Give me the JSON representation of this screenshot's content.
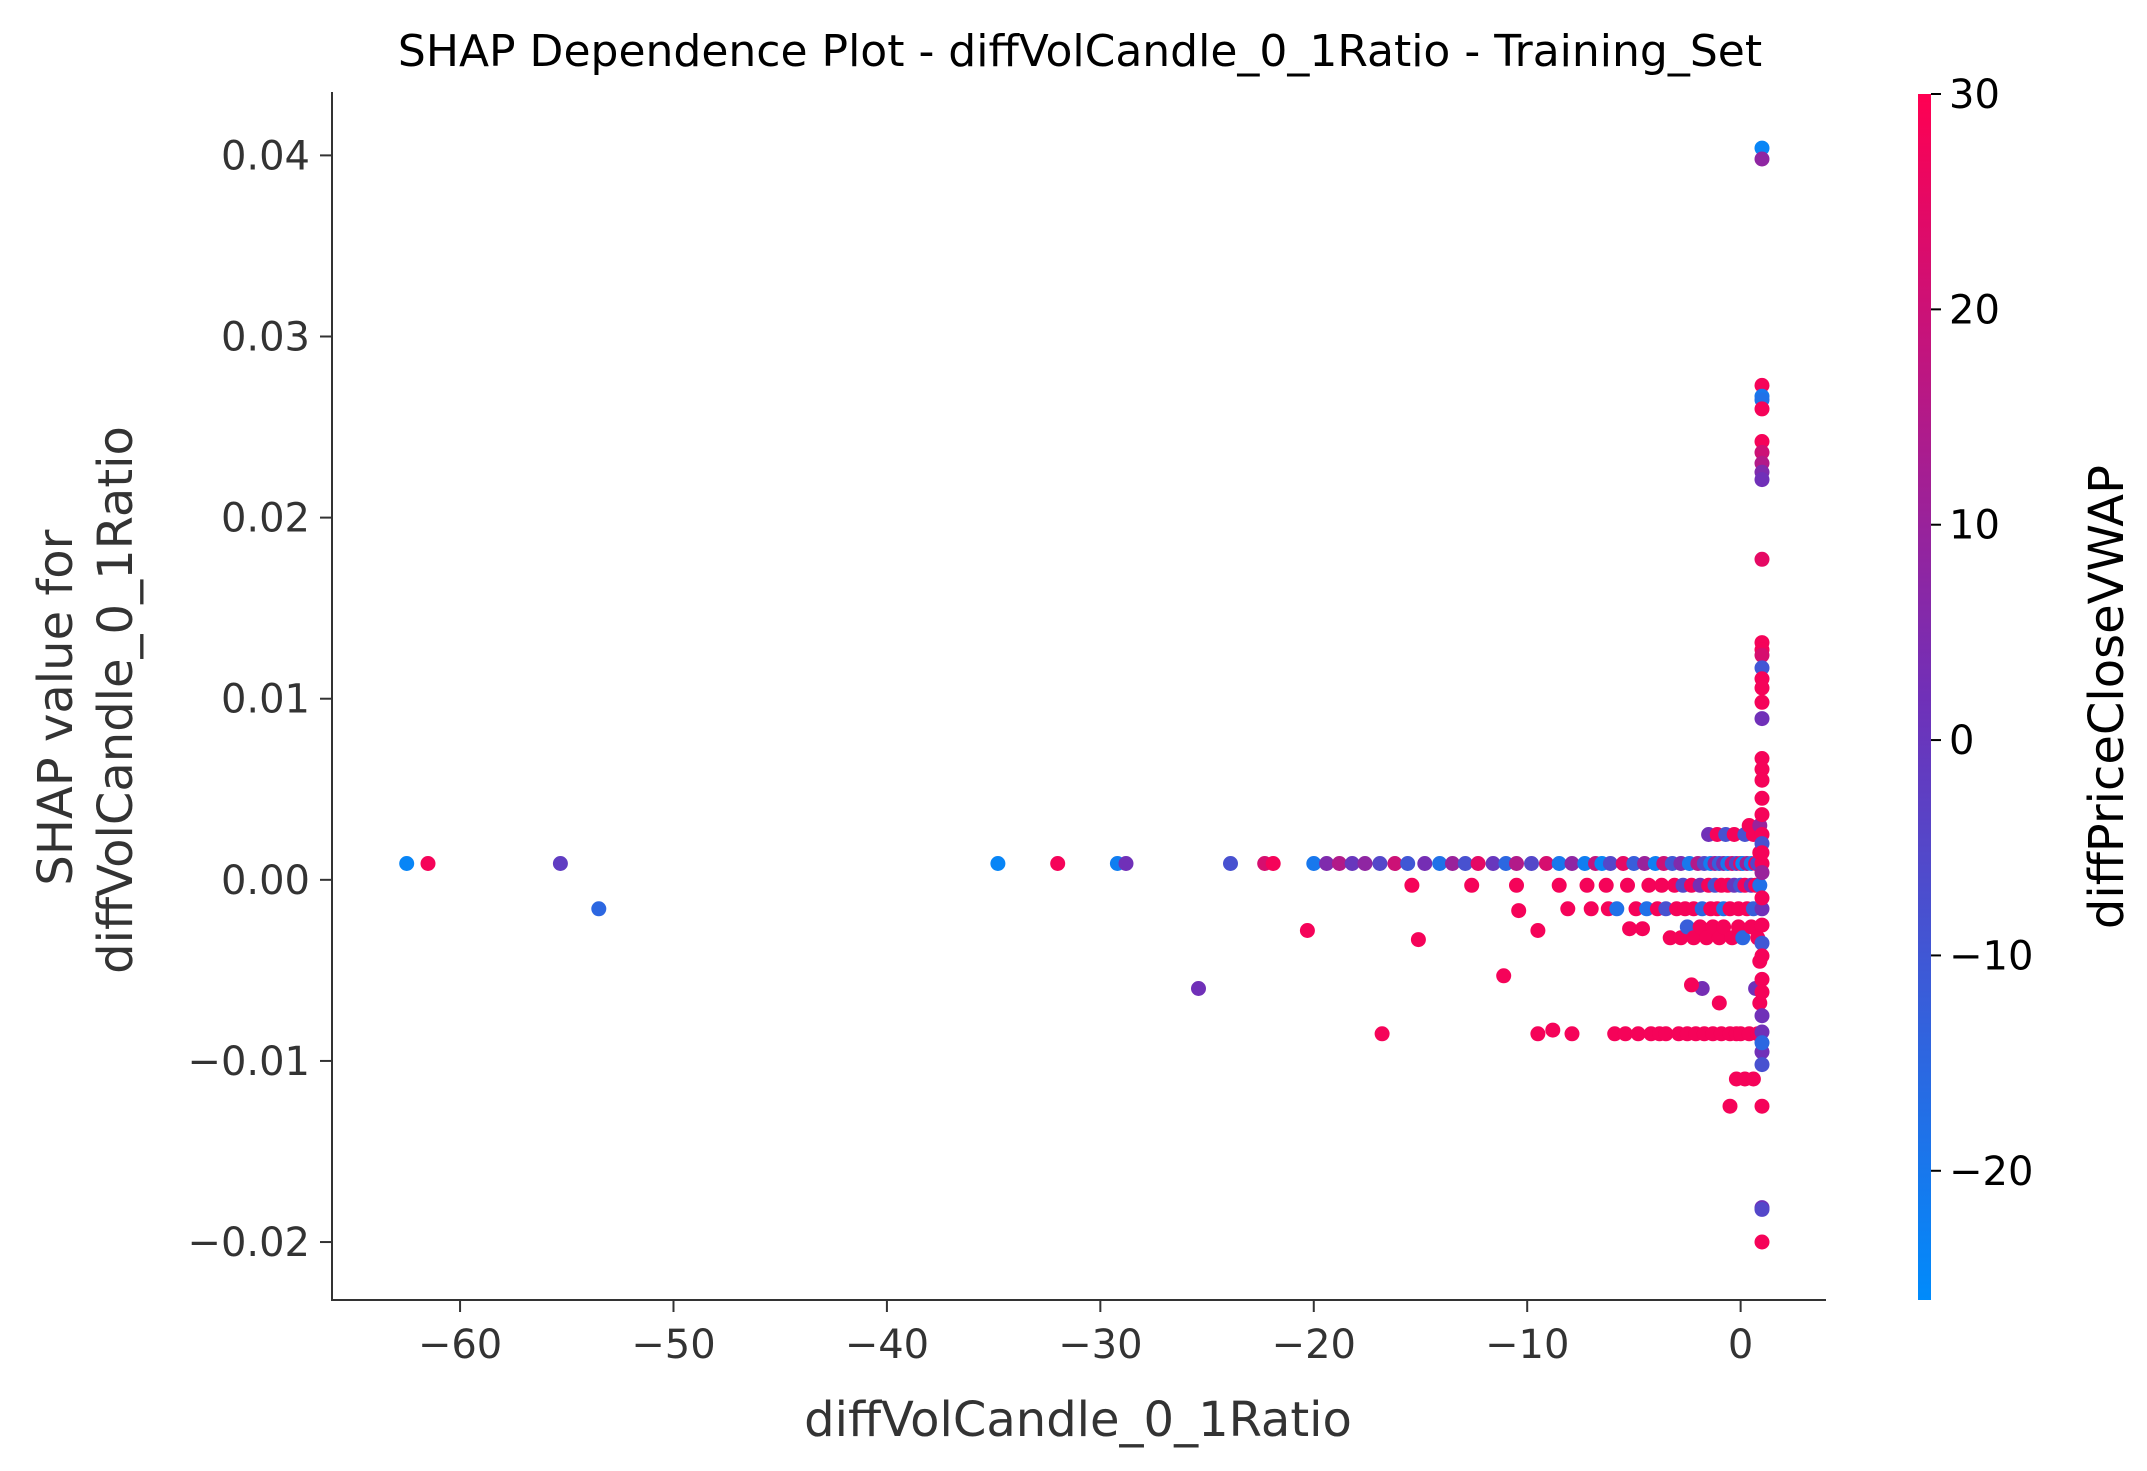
{
  "chart_data": {
    "type": "scatter",
    "title": "SHAP Dependence Plot - diffVolCandle_0_1Ratio - Training_Set",
    "xlabel": "diffVolCandle_0_1Ratio",
    "ylabel": "SHAP value for\ndiffVolCandle_0_1Ratio",
    "xlim": [
      -66,
      4
    ],
    "ylim": [
      -0.0232,
      0.0435
    ],
    "x_ticks": [
      -60,
      -50,
      -40,
      -30,
      -20,
      -10,
      0
    ],
    "x_tick_labels": [
      "−60",
      "−50",
      "−40",
      "−30",
      "−20",
      "−10",
      "0"
    ],
    "y_ticks": [
      -0.02,
      -0.01,
      0.0,
      0.01,
      0.02,
      0.03,
      0.04
    ],
    "y_tick_labels": [
      "−0.02",
      "−0.01",
      "0.00",
      "0.01",
      "0.02",
      "0.03",
      "0.04"
    ],
    "grid": false,
    "colorbar": {
      "label": "diffPriceCloseVWAP",
      "range": [
        -26,
        30
      ],
      "ticks": [
        -20,
        -10,
        0,
        10,
        20,
        30
      ],
      "tick_labels": [
        "−20",
        "−10",
        "0",
        "10",
        "20",
        "30"
      ],
      "color_low": "#008bfb",
      "color_mid": "#7030b8",
      "color_high": "#ff0052"
    },
    "points": [
      {
        "x": -62.5,
        "y": 0.0009,
        "c": -24
      },
      {
        "x": -61.5,
        "y": 0.0009,
        "c": 28
      },
      {
        "x": -55.3,
        "y": 0.0009,
        "c": -2
      },
      {
        "x": -53.5,
        "y": -0.0016,
        "c": -15
      },
      {
        "x": -34.8,
        "y": 0.0009,
        "c": -24
      },
      {
        "x": -32.0,
        "y": 0.0009,
        "c": 28
      },
      {
        "x": -29.2,
        "y": 0.0009,
        "c": -22
      },
      {
        "x": -28.8,
        "y": 0.0009,
        "c": 2
      },
      {
        "x": -25.4,
        "y": -0.006,
        "c": 2
      },
      {
        "x": -23.9,
        "y": 0.0009,
        "c": -8
      },
      {
        "x": -22.3,
        "y": 0.0009,
        "c": 22
      },
      {
        "x": -21.9,
        "y": 0.0009,
        "c": 28
      },
      {
        "x": -20.3,
        "y": -0.0028,
        "c": 28
      },
      {
        "x": -20.0,
        "y": 0.0009,
        "c": -20
      },
      {
        "x": -19.4,
        "y": 0.0009,
        "c": 5
      },
      {
        "x": -18.8,
        "y": 0.0009,
        "c": 15
      },
      {
        "x": -18.2,
        "y": 0.0009,
        "c": 0
      },
      {
        "x": -17.6,
        "y": 0.0009,
        "c": 8
      },
      {
        "x": -16.9,
        "y": 0.0009,
        "c": -5
      },
      {
        "x": -16.8,
        "y": -0.0085,
        "c": 28
      },
      {
        "x": -16.2,
        "y": 0.0009,
        "c": 20
      },
      {
        "x": -15.6,
        "y": 0.0009,
        "c": -10
      },
      {
        "x": -15.4,
        "y": -0.0003,
        "c": 28
      },
      {
        "x": -15.1,
        "y": -0.0033,
        "c": 28
      },
      {
        "x": -14.8,
        "y": 0.0009,
        "c": 3
      },
      {
        "x": -14.1,
        "y": 0.0009,
        "c": -18
      },
      {
        "x": -13.5,
        "y": 0.0009,
        "c": 10
      },
      {
        "x": -12.9,
        "y": 0.0009,
        "c": -8
      },
      {
        "x": -12.6,
        "y": -0.0003,
        "c": 28
      },
      {
        "x": -12.3,
        "y": 0.0009,
        "c": 25
      },
      {
        "x": -11.6,
        "y": 0.0009,
        "c": 0
      },
      {
        "x": -11.1,
        "y": -0.0053,
        "c": 28
      },
      {
        "x": -11.0,
        "y": 0.0009,
        "c": -15
      },
      {
        "x": -10.5,
        "y": 0.0009,
        "c": 15
      },
      {
        "x": -10.5,
        "y": -0.0003,
        "c": 28
      },
      {
        "x": -10.4,
        "y": -0.0017,
        "c": 28
      },
      {
        "x": -9.8,
        "y": 0.0009,
        "c": -5
      },
      {
        "x": -9.5,
        "y": -0.0028,
        "c": 28
      },
      {
        "x": -9.5,
        "y": -0.0085,
        "c": 28
      },
      {
        "x": -9.1,
        "y": 0.0009,
        "c": 22
      },
      {
        "x": -8.8,
        "y": -0.0083,
        "c": 28
      },
      {
        "x": -8.5,
        "y": 0.0009,
        "c": -20
      },
      {
        "x": -8.5,
        "y": -0.0003,
        "c": 28
      },
      {
        "x": -8.1,
        "y": -0.0016,
        "c": 28
      },
      {
        "x": -7.9,
        "y": 0.0009,
        "c": 8
      },
      {
        "x": -7.9,
        "y": -0.0085,
        "c": 28
      },
      {
        "x": -7.3,
        "y": 0.0009,
        "c": -22
      },
      {
        "x": -7.2,
        "y": -0.0003,
        "c": 28
      },
      {
        "x": -7.0,
        "y": -0.0016,
        "c": 28
      },
      {
        "x": -6.8,
        "y": 0.0009,
        "c": 18
      },
      {
        "x": -6.5,
        "y": 0.0009,
        "c": -24
      },
      {
        "x": -6.3,
        "y": -0.0003,
        "c": 28
      },
      {
        "x": -6.2,
        "y": -0.0016,
        "c": 28
      },
      {
        "x": -6.1,
        "y": 0.0009,
        "c": -5
      },
      {
        "x": -5.9,
        "y": -0.0085,
        "c": 28
      },
      {
        "x": -5.8,
        "y": -0.0016,
        "c": -18
      },
      {
        "x": -5.5,
        "y": 0.0009,
        "c": 25
      },
      {
        "x": -5.4,
        "y": -0.0085,
        "c": 28
      },
      {
        "x": -5.3,
        "y": -0.0003,
        "c": 28
      },
      {
        "x": -5.2,
        "y": -0.0027,
        "c": 28
      },
      {
        "x": -5.0,
        "y": 0.0009,
        "c": -12
      },
      {
        "x": -4.9,
        "y": -0.0016,
        "c": 28
      },
      {
        "x": -4.8,
        "y": -0.0085,
        "c": 28
      },
      {
        "x": -4.6,
        "y": -0.0027,
        "c": 28
      },
      {
        "x": -4.5,
        "y": 0.0009,
        "c": 10
      },
      {
        "x": -4.4,
        "y": -0.0016,
        "c": -18
      },
      {
        "x": -4.3,
        "y": -0.0003,
        "c": 28
      },
      {
        "x": -4.2,
        "y": -0.0085,
        "c": 28
      },
      {
        "x": -4.0,
        "y": 0.0009,
        "c": -22
      },
      {
        "x": -3.9,
        "y": -0.0016,
        "c": 28
      },
      {
        "x": -3.8,
        "y": -0.0085,
        "c": 28
      },
      {
        "x": -3.7,
        "y": -0.0003,
        "c": 28
      },
      {
        "x": -3.6,
        "y": 0.0009,
        "c": 20
      },
      {
        "x": -3.5,
        "y": -0.0016,
        "c": -8
      },
      {
        "x": -3.5,
        "y": -0.0085,
        "c": 28
      },
      {
        "x": -3.3,
        "y": -0.0032,
        "c": 28
      },
      {
        "x": -3.2,
        "y": 0.0009,
        "c": -10
      },
      {
        "x": -3.1,
        "y": -0.0003,
        "c": 28
      },
      {
        "x": -3.0,
        "y": -0.0016,
        "c": 28
      },
      {
        "x": -2.9,
        "y": -0.0085,
        "c": 28
      },
      {
        "x": -2.8,
        "y": 0.0009,
        "c": 5
      },
      {
        "x": -2.8,
        "y": -0.0032,
        "c": 28
      },
      {
        "x": -2.7,
        "y": -0.0003,
        "c": -5
      },
      {
        "x": -2.6,
        "y": -0.0016,
        "c": 28
      },
      {
        "x": -2.5,
        "y": -0.0085,
        "c": 28
      },
      {
        "x": -2.5,
        "y": -0.0026,
        "c": -12
      },
      {
        "x": -2.4,
        "y": 0.0009,
        "c": -20
      },
      {
        "x": -2.3,
        "y": -0.0003,
        "c": 28
      },
      {
        "x": -2.2,
        "y": -0.0016,
        "c": 28
      },
      {
        "x": -2.2,
        "y": -0.0032,
        "c": 28
      },
      {
        "x": -2.1,
        "y": -0.0085,
        "c": 28
      },
      {
        "x": -2.0,
        "y": 0.0009,
        "c": 15
      },
      {
        "x": -1.9,
        "y": -0.0003,
        "c": 3
      },
      {
        "x": -1.9,
        "y": -0.0026,
        "c": 28
      },
      {
        "x": -1.8,
        "y": -0.0016,
        "c": -15
      },
      {
        "x": -1.7,
        "y": 0.0009,
        "c": -5
      },
      {
        "x": -1.7,
        "y": -0.0085,
        "c": 28
      },
      {
        "x": -1.6,
        "y": -0.0032,
        "c": 28
      },
      {
        "x": -1.5,
        "y": -0.0003,
        "c": 28
      },
      {
        "x": -1.5,
        "y": 0.0025,
        "c": 2
      },
      {
        "x": -1.4,
        "y": 0.0009,
        "c": -22
      },
      {
        "x": -1.4,
        "y": -0.0016,
        "c": 28
      },
      {
        "x": -1.3,
        "y": -0.0085,
        "c": 28
      },
      {
        "x": -1.3,
        "y": -0.0026,
        "c": 28
      },
      {
        "x": -1.2,
        "y": 0.0009,
        "c": 10
      },
      {
        "x": -1.2,
        "y": -0.0003,
        "c": -8
      },
      {
        "x": -1.1,
        "y": -0.0016,
        "c": 28
      },
      {
        "x": -1.1,
        "y": 0.0025,
        "c": 28
      },
      {
        "x": -1.0,
        "y": 0.0009,
        "c": -12
      },
      {
        "x": -1.0,
        "y": -0.0032,
        "c": 28
      },
      {
        "x": -0.9,
        "y": -0.0085,
        "c": 28
      },
      {
        "x": -0.9,
        "y": -0.0003,
        "c": 28
      },
      {
        "x": -0.8,
        "y": 0.0009,
        "c": 5
      },
      {
        "x": -0.8,
        "y": -0.0016,
        "c": -18
      },
      {
        "x": -0.8,
        "y": -0.0026,
        "c": 28
      },
      {
        "x": -0.7,
        "y": 0.0025,
        "c": -8
      },
      {
        "x": -0.6,
        "y": -0.0003,
        "c": 28
      },
      {
        "x": -0.6,
        "y": 0.0009,
        "c": -20
      },
      {
        "x": -0.5,
        "y": -0.0085,
        "c": 28
      },
      {
        "x": -0.5,
        "y": -0.0016,
        "c": 28
      },
      {
        "x": -0.4,
        "y": -0.0032,
        "c": 28
      },
      {
        "x": -0.4,
        "y": 0.0009,
        "c": 18
      },
      {
        "x": -0.3,
        "y": -0.0003,
        "c": 0
      },
      {
        "x": -0.3,
        "y": 0.0025,
        "c": 28
      },
      {
        "x": -0.2,
        "y": -0.0085,
        "c": 28
      },
      {
        "x": -0.2,
        "y": 0.0009,
        "c": -5
      },
      {
        "x": -0.1,
        "y": -0.0016,
        "c": 28
      },
      {
        "x": -0.1,
        "y": -0.0026,
        "c": 28
      },
      {
        "x": 0.0,
        "y": -0.0003,
        "c": -10
      },
      {
        "x": 0.0,
        "y": 0.0009,
        "c": 25
      },
      {
        "x": 0.0,
        "y": -0.0085,
        "c": 28
      },
      {
        "x": -0.5,
        "y": -0.0125,
        "c": 28
      },
      {
        "x": -1.8,
        "y": -0.006,
        "c": 3
      },
      {
        "x": -2.3,
        "y": -0.0058,
        "c": 28
      },
      {
        "x": -1.0,
        "y": -0.0068,
        "c": 28
      },
      {
        "x": -0.2,
        "y": -0.011,
        "c": 28
      },
      {
        "x": 0.1,
        "y": -0.0032,
        "c": -15
      },
      {
        "x": 0.1,
        "y": 0.0009,
        "c": -24
      },
      {
        "x": 0.2,
        "y": -0.0003,
        "c": 28
      },
      {
        "x": 0.2,
        "y": 0.0025,
        "c": -8
      },
      {
        "x": 0.2,
        "y": -0.011,
        "c": 28
      },
      {
        "x": 0.3,
        "y": -0.0016,
        "c": 28
      },
      {
        "x": 0.3,
        "y": 0.0009,
        "c": 12
      },
      {
        "x": 0.4,
        "y": -0.0085,
        "c": 28
      },
      {
        "x": 0.4,
        "y": 0.003,
        "c": 28
      },
      {
        "x": 0.5,
        "y": -0.0003,
        "c": 2
      },
      {
        "x": 0.5,
        "y": 0.0009,
        "c": -20
      },
      {
        "x": 0.5,
        "y": -0.0026,
        "c": 28
      },
      {
        "x": 0.6,
        "y": 0.0025,
        "c": 28
      },
      {
        "x": 0.6,
        "y": -0.0016,
        "c": -12
      },
      {
        "x": 0.6,
        "y": -0.011,
        "c": 28
      },
      {
        "x": 0.7,
        "y": 0.0009,
        "c": 28
      },
      {
        "x": 0.7,
        "y": -0.0003,
        "c": 28
      },
      {
        "x": 0.7,
        "y": -0.006,
        "c": 2
      },
      {
        "x": 0.8,
        "y": -0.0032,
        "c": 28
      },
      {
        "x": 0.8,
        "y": 0.0009,
        "c": -5
      },
      {
        "x": 0.8,
        "y": -0.0085,
        "c": 28
      },
      {
        "x": 0.9,
        "y": -0.0003,
        "c": -18
      },
      {
        "x": 0.9,
        "y": 0.0015,
        "c": 28
      },
      {
        "x": 0.9,
        "y": 0.003,
        "c": 10
      },
      {
        "x": 0.9,
        "y": -0.0045,
        "c": 28
      },
      {
        "x": 0.9,
        "y": -0.0068,
        "c": 28
      },
      {
        "x": 1.0,
        "y": 0.0009,
        "c": 28
      },
      {
        "x": 1.0,
        "y": -0.0016,
        "c": 2
      },
      {
        "x": 1.0,
        "y": -0.0035,
        "c": -10
      },
      {
        "x": 1.0,
        "y": -0.0055,
        "c": 28
      },
      {
        "x": 1.0,
        "y": -0.0075,
        "c": 2
      },
      {
        "x": 1.0,
        "y": -0.0095,
        "c": 2
      },
      {
        "x": 1.0,
        "y": -0.0102,
        "c": -8
      },
      {
        "x": 1.0,
        "y": -0.0125,
        "c": 28
      },
      {
        "x": 1.0,
        "y": -0.0181,
        "c": 2
      },
      {
        "x": 1.0,
        "y": -0.0182,
        "c": -5
      },
      {
        "x": 1.0,
        "y": -0.02,
        "c": 28
      },
      {
        "x": 1.0,
        "y": 0.0404,
        "c": -24
      },
      {
        "x": 1.0,
        "y": 0.0398,
        "c": 8
      },
      {
        "x": 1.0,
        "y": 0.0273,
        "c": 28
      },
      {
        "x": 1.0,
        "y": 0.0267,
        "c": -20
      },
      {
        "x": 1.0,
        "y": 0.0265,
        "c": -18
      },
      {
        "x": 1.0,
        "y": 0.026,
        "c": 28
      },
      {
        "x": 1.0,
        "y": 0.0242,
        "c": 28
      },
      {
        "x": 1.0,
        "y": 0.0236,
        "c": 20
      },
      {
        "x": 1.0,
        "y": 0.023,
        "c": 15
      },
      {
        "x": 1.0,
        "y": 0.0225,
        "c": 5
      },
      {
        "x": 1.0,
        "y": 0.0221,
        "c": 2
      },
      {
        "x": 1.0,
        "y": 0.0177,
        "c": 25
      },
      {
        "x": 1.0,
        "y": 0.0131,
        "c": 28
      },
      {
        "x": 1.0,
        "y": 0.0127,
        "c": 28
      },
      {
        "x": 1.0,
        "y": 0.0124,
        "c": 22
      },
      {
        "x": 1.0,
        "y": 0.0117,
        "c": -10
      },
      {
        "x": 1.0,
        "y": 0.0111,
        "c": 28
      },
      {
        "x": 1.0,
        "y": 0.0106,
        "c": 28
      },
      {
        "x": 1.0,
        "y": 0.0098,
        "c": 28
      },
      {
        "x": 1.0,
        "y": 0.0089,
        "c": 2
      },
      {
        "x": 1.0,
        "y": 0.0067,
        "c": 28
      },
      {
        "x": 1.0,
        "y": 0.0061,
        "c": 28
      },
      {
        "x": 1.0,
        "y": 0.0055,
        "c": 28
      },
      {
        "x": 1.0,
        "y": 0.0045,
        "c": 28
      },
      {
        "x": 1.0,
        "y": 0.0036,
        "c": 28
      },
      {
        "x": 1.0,
        "y": 0.0025,
        "c": 28
      },
      {
        "x": 1.0,
        "y": 0.002,
        "c": -8
      },
      {
        "x": 1.0,
        "y": 0.0015,
        "c": 28
      },
      {
        "x": 1.0,
        "y": 0.0004,
        "c": 10
      },
      {
        "x": 1.0,
        "y": -0.001,
        "c": 28
      },
      {
        "x": 1.0,
        "y": -0.0025,
        "c": 28
      },
      {
        "x": 1.0,
        "y": -0.0042,
        "c": 28
      },
      {
        "x": 1.0,
        "y": -0.0062,
        "c": 28
      },
      {
        "x": 1.0,
        "y": -0.0084,
        "c": 2
      },
      {
        "x": 1.0,
        "y": -0.009,
        "c": -15
      }
    ]
  }
}
